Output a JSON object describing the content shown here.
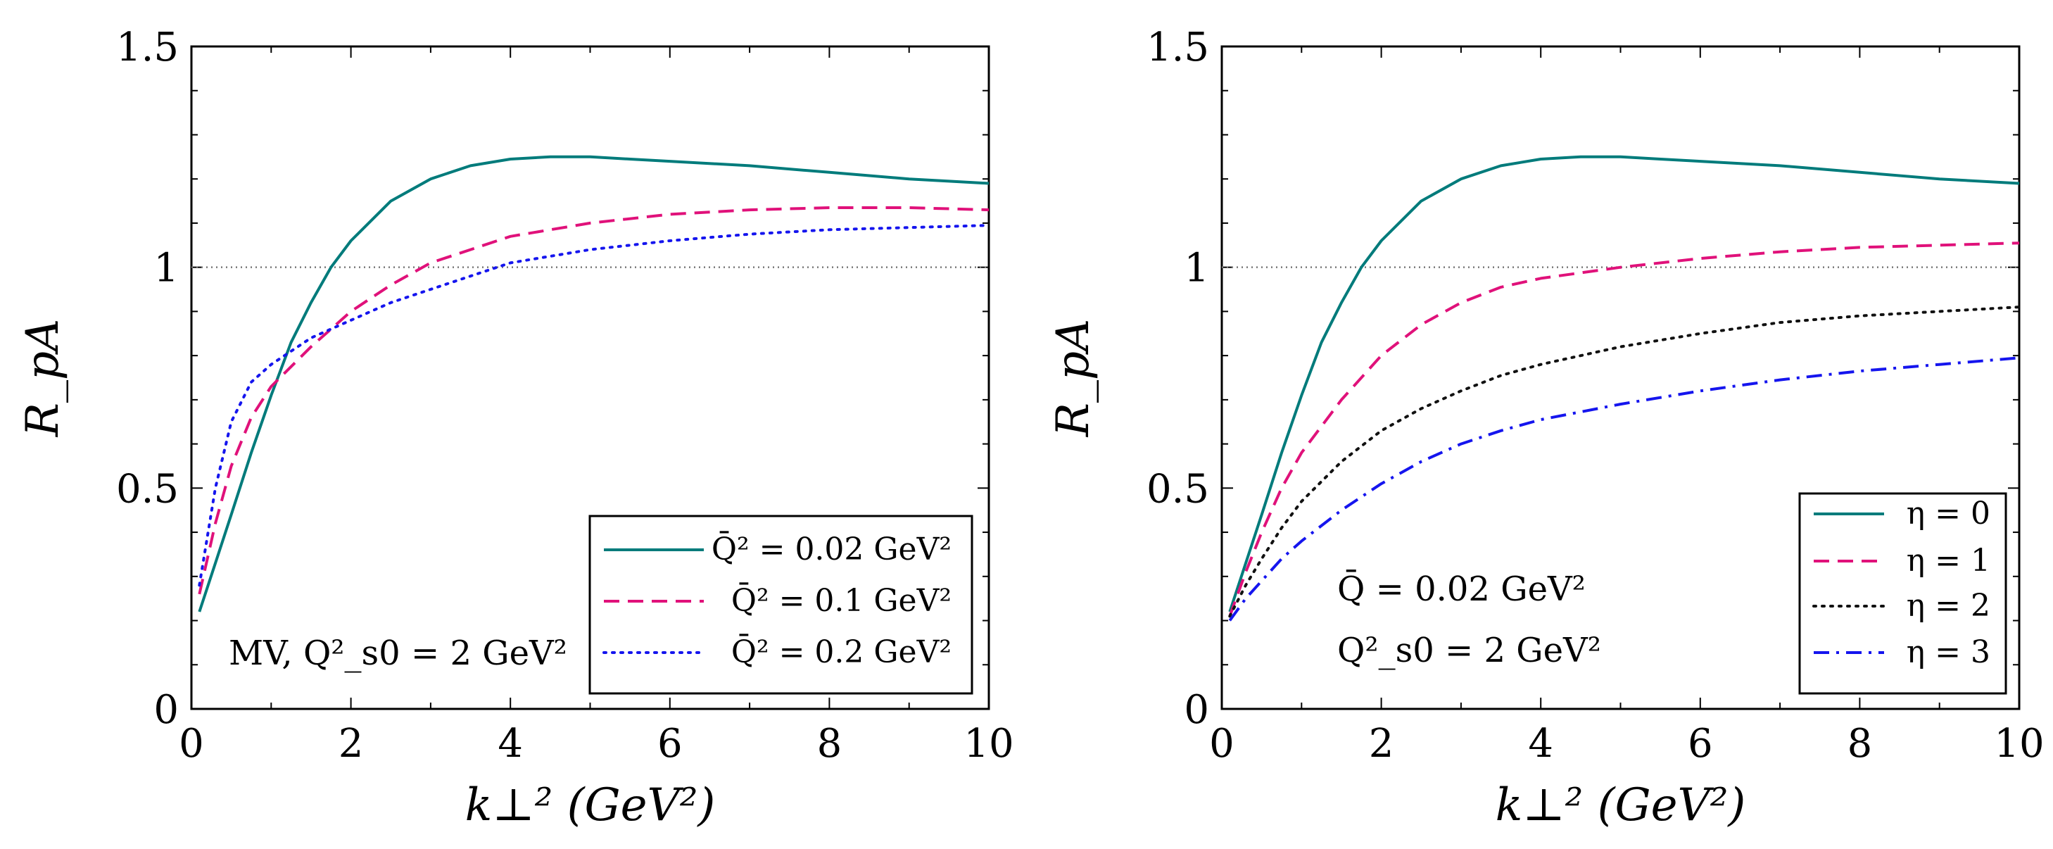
{
  "chart_data": [
    {
      "type": "line",
      "xlabel": "k⊥² (GeV²)",
      "ylabel": "R_pA",
      "xlim": [
        0,
        10
      ],
      "ylim": [
        0,
        1.5
      ],
      "xticks": [
        "0",
        "2",
        "4",
        "6",
        "8",
        "10"
      ],
      "yticks": [
        "0",
        "0.5",
        "1",
        "1.5"
      ],
      "reference_line": {
        "y": 1,
        "style": "dotted",
        "color": "#777777"
      },
      "annotation": [
        "MV, Q²_s0 = 2 GeV²"
      ],
      "legend_position": "bottom-right",
      "series": [
        {
          "name": "Q̄² = 0.02 GeV²",
          "color": "#007b7b",
          "dash": "solid",
          "x": [
            0.1,
            0.3,
            0.5,
            0.75,
            1,
            1.25,
            1.5,
            1.75,
            2,
            2.5,
            3,
            3.5,
            4,
            4.5,
            5,
            5.5,
            6,
            7,
            8,
            9,
            10
          ],
          "y": [
            0.22,
            0.33,
            0.44,
            0.58,
            0.71,
            0.83,
            0.92,
            1.0,
            1.06,
            1.15,
            1.2,
            1.23,
            1.245,
            1.25,
            1.25,
            1.245,
            1.24,
            1.23,
            1.215,
            1.2,
            1.19
          ]
        },
        {
          "name": "Q̄² = 0.1 GeV²",
          "color": "#e0117a",
          "dash": "dashed",
          "x": [
            0.1,
            0.3,
            0.5,
            0.75,
            1,
            1.5,
            2,
            2.5,
            3,
            3.5,
            4,
            5,
            6,
            7,
            8,
            9,
            10
          ],
          "y": [
            0.26,
            0.42,
            0.55,
            0.66,
            0.73,
            0.82,
            0.9,
            0.96,
            1.01,
            1.04,
            1.07,
            1.1,
            1.12,
            1.13,
            1.135,
            1.135,
            1.13
          ]
        },
        {
          "name": "Q̄² = 0.2 GeV²",
          "color": "#1515ee",
          "dash": "dotted",
          "x": [
            0.1,
            0.3,
            0.5,
            0.75,
            1,
            1.5,
            2,
            2.5,
            3,
            3.5,
            4,
            5,
            6,
            7,
            8,
            9,
            10
          ],
          "y": [
            0.28,
            0.5,
            0.65,
            0.74,
            0.78,
            0.84,
            0.88,
            0.92,
            0.95,
            0.98,
            1.01,
            1.04,
            1.06,
            1.075,
            1.085,
            1.09,
            1.095
          ]
        }
      ]
    },
    {
      "type": "line",
      "xlabel": "k⊥² (GeV²)",
      "ylabel": "R_pA",
      "xlim": [
        0,
        10
      ],
      "ylim": [
        0,
        1.5
      ],
      "xticks": [
        "0",
        "2",
        "4",
        "6",
        "8",
        "10"
      ],
      "yticks": [
        "0",
        "0.5",
        "1",
        "1.5"
      ],
      "reference_line": {
        "y": 1,
        "style": "dotted",
        "color": "#777777"
      },
      "annotation": [
        "Q̄ = 0.02 GeV²",
        "Q²_s0 = 2 GeV²"
      ],
      "legend_position": "bottom-right",
      "series": [
        {
          "name": "η = 0",
          "color": "#007b7b",
          "dash": "solid",
          "x": [
            0.1,
            0.3,
            0.5,
            0.75,
            1,
            1.25,
            1.5,
            1.75,
            2,
            2.5,
            3,
            3.5,
            4,
            4.5,
            5,
            5.5,
            6,
            7,
            8,
            9,
            10
          ],
          "y": [
            0.22,
            0.33,
            0.44,
            0.58,
            0.71,
            0.83,
            0.92,
            1.0,
            1.06,
            1.15,
            1.2,
            1.23,
            1.245,
            1.25,
            1.25,
            1.245,
            1.24,
            1.23,
            1.215,
            1.2,
            1.19
          ]
        },
        {
          "name": "η = 1",
          "color": "#e0117a",
          "dash": "dashed",
          "x": [
            0.1,
            0.3,
            0.5,
            0.75,
            1,
            1.5,
            2,
            2.5,
            3,
            3.5,
            4,
            5,
            6,
            7,
            8,
            9,
            10
          ],
          "y": [
            0.21,
            0.31,
            0.4,
            0.5,
            0.58,
            0.7,
            0.8,
            0.87,
            0.92,
            0.955,
            0.975,
            1.0,
            1.02,
            1.035,
            1.045,
            1.05,
            1.055
          ]
        },
        {
          "name": "η = 2",
          "color": "#111111",
          "dash": "dotted",
          "x": [
            0.1,
            0.3,
            0.5,
            0.75,
            1,
            1.5,
            2,
            2.5,
            3,
            3.5,
            4,
            5,
            6,
            7,
            8,
            9,
            10
          ],
          "y": [
            0.21,
            0.28,
            0.34,
            0.41,
            0.47,
            0.56,
            0.63,
            0.68,
            0.72,
            0.755,
            0.78,
            0.82,
            0.85,
            0.875,
            0.89,
            0.9,
            0.91
          ]
        },
        {
          "name": "η = 3",
          "color": "#1515ee",
          "dash": "dashdot",
          "x": [
            0.1,
            0.3,
            0.5,
            0.75,
            1,
            1.5,
            2,
            2.5,
            3,
            3.5,
            4,
            5,
            6,
            7,
            8,
            9,
            10
          ],
          "y": [
            0.2,
            0.25,
            0.29,
            0.34,
            0.38,
            0.45,
            0.51,
            0.56,
            0.6,
            0.63,
            0.655,
            0.69,
            0.72,
            0.745,
            0.765,
            0.78,
            0.795
          ]
        }
      ]
    }
  ]
}
